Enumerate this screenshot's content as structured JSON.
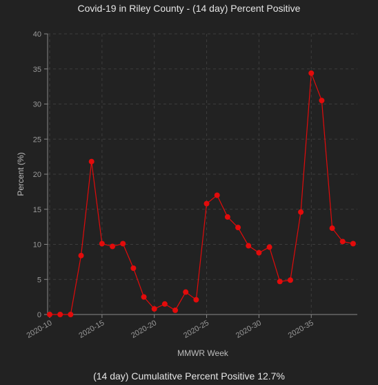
{
  "chart_data": {
    "type": "line",
    "title": "Covid-19 in Riley County - (14 day) Percent Positive",
    "xlabel": "MMWR Week",
    "ylabel": "Percent (%)",
    "footer": "(14 day) Cumulatitve Percent Positive 12.7%",
    "x_tick_labels": [
      "2020-10",
      "2020-15",
      "2020-20",
      "2020-25",
      "2020-30",
      "2020-35"
    ],
    "y_tick_labels": [
      "0",
      "5",
      "10",
      "15",
      "20",
      "25",
      "30",
      "35",
      "40"
    ],
    "ylim": [
      0,
      40
    ],
    "xlim": [
      9.8,
      39.4
    ],
    "grid": true,
    "legend": "none",
    "series": [
      {
        "color": "#e30b0b",
        "x": [
          10,
          11,
          12,
          13,
          14,
          15,
          16,
          17,
          18,
          19,
          20,
          21,
          22,
          23,
          24,
          25,
          26,
          27,
          28,
          29,
          30,
          31,
          32,
          33,
          34,
          35,
          36,
          37,
          38,
          39
        ],
        "values": [
          0,
          0,
          0,
          8.4,
          21.8,
          10.1,
          9.7,
          10.1,
          6.6,
          2.5,
          0.8,
          1.5,
          0.6,
          3.2,
          2.1,
          15.8,
          17.0,
          13.9,
          12.4,
          9.8,
          8.8,
          9.6,
          4.7,
          4.9,
          14.6,
          34.4,
          30.5,
          12.3,
          10.4,
          10.1
        ]
      }
    ]
  },
  "colors": {
    "background": "#222222",
    "gridline": "#3d3d3d",
    "axis": "#8a8a8a",
    "line": "#e30b0b"
  }
}
